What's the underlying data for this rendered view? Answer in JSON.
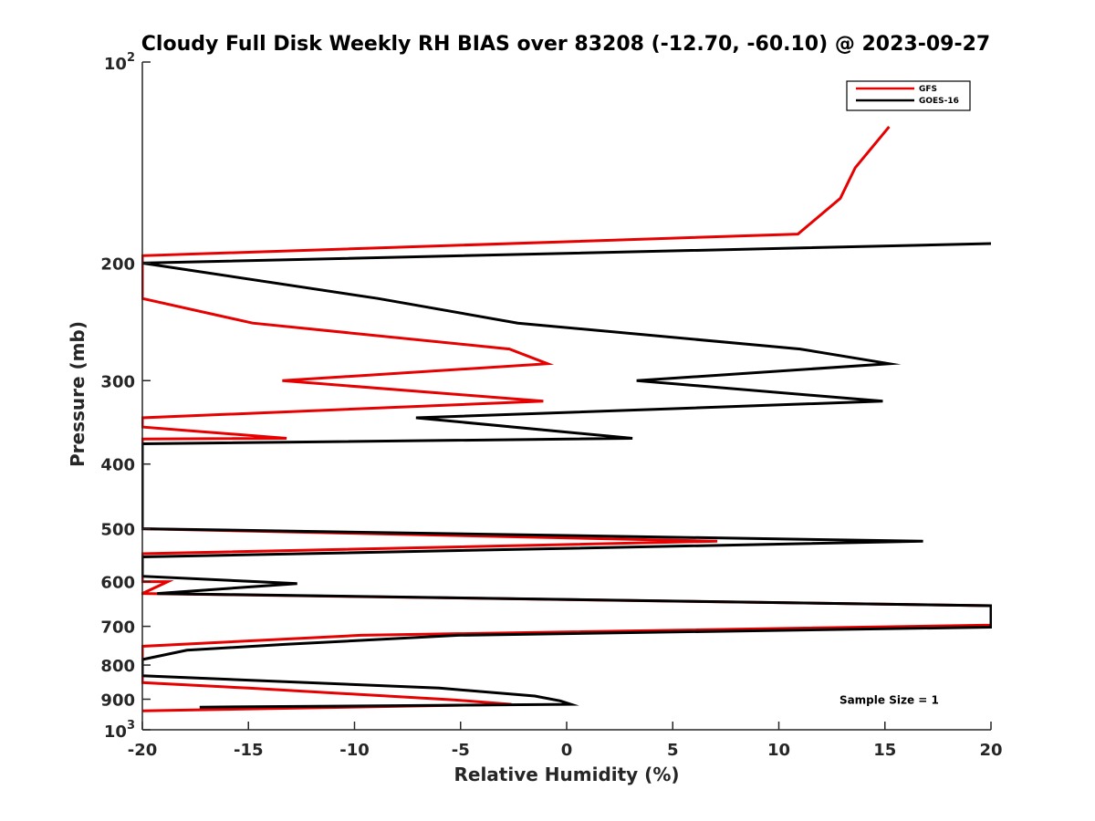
{
  "chart_data": {
    "type": "line",
    "title": "Cloudy Full Disk Weekly RH BIAS over 83208 (-12.70, -60.10) @ 2023-09-27",
    "xlabel": "Relative Humidity (%)",
    "ylabel": "Pressure (mb)",
    "xlim": [
      -20,
      20
    ],
    "ylim": [
      100,
      1000
    ],
    "yscale": "log",
    "y_reversed": true,
    "x_ticks": [
      -20,
      -15,
      -10,
      -5,
      0,
      5,
      10,
      15,
      20
    ],
    "x_tick_labels": [
      "-20",
      "-15",
      "-10",
      "-5",
      "0",
      "5",
      "10",
      "15",
      "20"
    ],
    "y_ticks": [
      {
        "value": 100,
        "base": "10",
        "exp": "2",
        "label": ""
      },
      {
        "value": 200,
        "label": "200"
      },
      {
        "value": 300,
        "label": "300"
      },
      {
        "value": 400,
        "label": "400"
      },
      {
        "value": 500,
        "label": "500"
      },
      {
        "value": 600,
        "label": "600"
      },
      {
        "value": 700,
        "label": "700"
      },
      {
        "value": 800,
        "label": "800"
      },
      {
        "value": 900,
        "label": "900"
      },
      {
        "value": 1000,
        "base": "10",
        "exp": "3",
        "label": ""
      }
    ],
    "legend_position": "top-right",
    "series": [
      {
        "name": "GFS",
        "color": "#e60000",
        "points": [
          [
            15.2,
            125
          ],
          [
            13.6,
            144
          ],
          [
            12.9,
            160
          ],
          [
            10.9,
            181
          ],
          [
            -20,
            195
          ],
          [
            -20,
            226
          ],
          [
            -14.8,
            246
          ],
          [
            -2.7,
            269
          ],
          [
            -0.9,
            283
          ],
          [
            -13.4,
            300
          ],
          [
            -1.1,
            322
          ],
          [
            -20,
            341
          ],
          [
            -20,
            352
          ],
          [
            -13.2,
            366
          ],
          [
            -20,
            367
          ],
          [
            -20,
            500
          ],
          [
            7.1,
            522
          ],
          [
            -20,
            545
          ],
          [
            -20,
            600
          ],
          [
            -18.8,
            600
          ],
          [
            -20,
            625
          ],
          [
            20,
            652
          ],
          [
            20,
            697
          ],
          [
            -9.7,
            722
          ],
          [
            -20,
            750
          ],
          [
            -20,
            850
          ],
          [
            -15.0,
            866
          ],
          [
            -5.3,
            902
          ],
          [
            -2.6,
            916
          ],
          [
            -20,
            937
          ]
        ]
      },
      {
        "name": "GOES-16",
        "color": "#000000",
        "points": [
          [
            20,
            187
          ],
          [
            -20,
            200
          ],
          [
            -8.9,
            226
          ],
          [
            -2.3,
            246
          ],
          [
            11.0,
            269
          ],
          [
            15.2,
            283
          ],
          [
            3.3,
            300
          ],
          [
            14.9,
            322
          ],
          [
            -7.1,
            341
          ],
          [
            3.1,
            366
          ],
          [
            -20,
            373
          ],
          [
            -20,
            500
          ],
          [
            16.8,
            522
          ],
          [
            -20,
            551
          ],
          [
            -20,
            589
          ],
          [
            -12.7,
            604
          ],
          [
            -19.3,
            625
          ],
          [
            20,
            652
          ],
          [
            20,
            702
          ],
          [
            -5.1,
            722
          ],
          [
            -13.3,
            745
          ],
          [
            -17.9,
            760
          ],
          [
            -20,
            785
          ],
          [
            -20,
            830
          ],
          [
            -6.0,
            866
          ],
          [
            -1.5,
            890
          ],
          [
            -0.3,
            905
          ],
          [
            0.2,
            916
          ],
          [
            -17.3,
            925
          ]
        ]
      }
    ],
    "annotations": [
      {
        "text": "Sample Size = 1",
        "x": 15.2,
        "y": 900
      }
    ]
  }
}
